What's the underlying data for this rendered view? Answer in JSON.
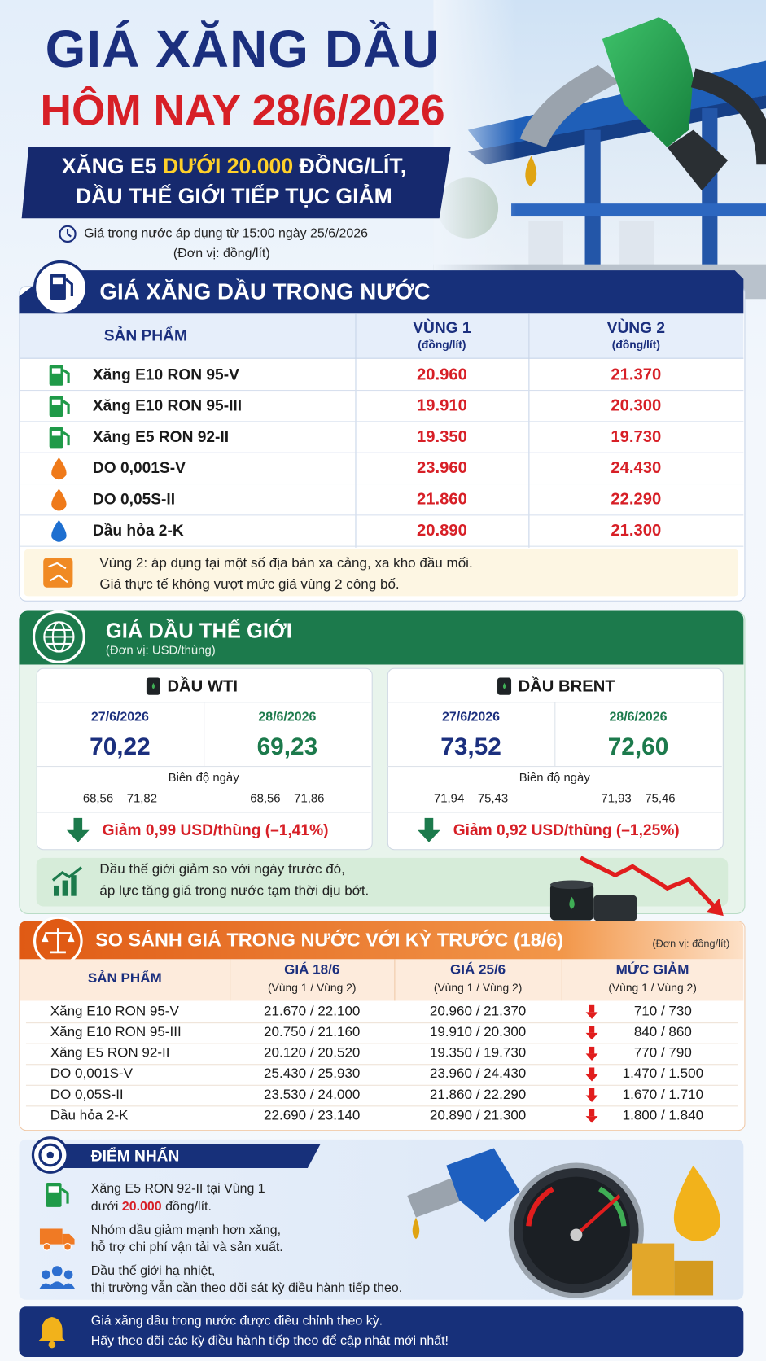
{
  "header": {
    "title_line1": "GIÁ XĂNG DẦU",
    "title_line2": "HÔM NAY 28/6/2026",
    "banner_line1": [
      "XĂNG E5",
      "DƯỚI 20.000",
      "ĐỒNG/LÍT,"
    ],
    "banner_line2": "DẦU THẾ GIỚI TIẾP TỤC GIẢM",
    "applied": "Giá trong nước áp dụng từ 15:00 ngày 25/6/2026",
    "unit": "(Đơn vị: đồng/lít)"
  },
  "domestic": {
    "title": "GIÁ XĂNG DẦU TRONG NƯỚC",
    "columns": [
      {
        "label": "SẢN PHẨM"
      },
      {
        "label": "VÙNG 1",
        "unit": "(đồng/lít)"
      },
      {
        "label": "VÙNG 2",
        "unit": "(đồng/lít)"
      }
    ],
    "rows": [
      {
        "product": "Xăng E10 RON 95-V",
        "vung1": "20.960",
        "vung2": "21.370"
      },
      {
        "product": "Xăng E10 RON 95-III",
        "vung1": "19.910",
        "vung2": "20.300"
      },
      {
        "product": "Xăng E5 RON 92-II",
        "vung1": "19.350",
        "vung2": "19.730"
      },
      {
        "product": "DO 0,001S-V",
        "vung1": "23.960",
        "vung2": "24.430"
      },
      {
        "product": "DO 0,05S-II",
        "vung1": "21.860",
        "vung2": "22.290"
      },
      {
        "product": "Dầu hỏa 2-K",
        "vung1": "20.890",
        "vung2": "21.300"
      }
    ],
    "note": [
      "Vùng 2: áp dụng tại một số địa bàn xa cảng, xa kho đầu mối.",
      "Giá thực tế không vượt mức giá vùng 2 công bố."
    ]
  },
  "world": {
    "title": "GIÁ DẦU THẾ GIỚI",
    "unit": "(Đơn vị: USD/thùng)",
    "cards": [
      {
        "name": "DẦU WTI",
        "dates": [
          "27/6/2026",
          "28/6/2026"
        ],
        "prices": [
          "70,22",
          "69,23"
        ],
        "range_label": "Biên độ ngày",
        "ranges": [
          "68,56 – 71,82",
          "68,56 – 71,86"
        ],
        "change": "Giảm 0,99 USD/thùng (–1,41%)"
      },
      {
        "name": "DẦU BRENT",
        "dates": [
          "27/6/2026",
          "28/6/2026"
        ],
        "prices": [
          "73,52",
          "72,60"
        ],
        "range_label": "Biên độ ngày",
        "ranges": [
          "71,94 – 75,43",
          "71,93 – 75,46"
        ],
        "change": "Giảm 0,92 USD/thùng (–1,25%)"
      }
    ],
    "note": [
      "Dầu thế giới giảm so với ngày trước đó,",
      "áp lực tăng giá trong nước tạm thời dịu bớt."
    ]
  },
  "compare": {
    "title": "SO SÁNH GIÁ TRONG NƯỚC VỚI KỲ TRƯỚC (18/6)",
    "unit": "(Đơn vị: đồng/lít)",
    "columns": [
      {
        "label": "SẢN PHẨM"
      },
      {
        "label": "GIÁ 18/6",
        "sub": "(Vùng 1 / Vùng 2)"
      },
      {
        "label": "GIÁ 25/6",
        "sub": "(Vùng 1 / Vùng 2)"
      },
      {
        "label": "MỨC GIẢM",
        "sub": "(Vùng 1 / Vùng 2)"
      }
    ],
    "rows": [
      [
        "Xăng E10 RON 95-V",
        "21.670 / 22.100",
        "20.960 / 21.370",
        "710 / 730"
      ],
      [
        "Xăng E10 RON 95-III",
        "20.750 / 21.160",
        "19.910 / 20.300",
        "840 / 860"
      ],
      [
        "Xăng E5 RON 92-II",
        "20.120 / 20.520",
        "19.350 / 19.730",
        "770 / 790"
      ],
      [
        "DO 0,001S-V",
        "25.430 / 25.930",
        "23.960 / 24.430",
        "1.470 / 1.500"
      ],
      [
        "DO 0,05S-II",
        "23.530 / 24.000",
        "21.860 / 22.290",
        "1.670 / 1.710"
      ],
      [
        "Dầu hỏa 2-K",
        "22.690 / 23.140",
        "20.890 / 21.300",
        "1.800 / 1.840"
      ]
    ]
  },
  "highlights": {
    "title": "ĐIỂM NHẤN",
    "item1": {
      "line1": "Xăng E5 RON 92-II tại Vùng 1",
      "line2": [
        "dưới",
        "20.000",
        "đồng/lít."
      ]
    },
    "item2": [
      "Nhóm dầu giảm mạnh hơn xăng,",
      "hỗ trợ chi phí vận tải và sản xuất."
    ],
    "item3": [
      "Dầu thế giới hạ nhiệt,",
      "thị trường vẫn cần theo dõi sát kỳ điều hành tiếp theo."
    ]
  },
  "footer": [
    "Giá xăng dầu trong nước được điều chỉnh theo kỳ.",
    "Hãy theo dõi các kỳ điều hành tiếp theo để cập nhật mới nhất!"
  ]
}
